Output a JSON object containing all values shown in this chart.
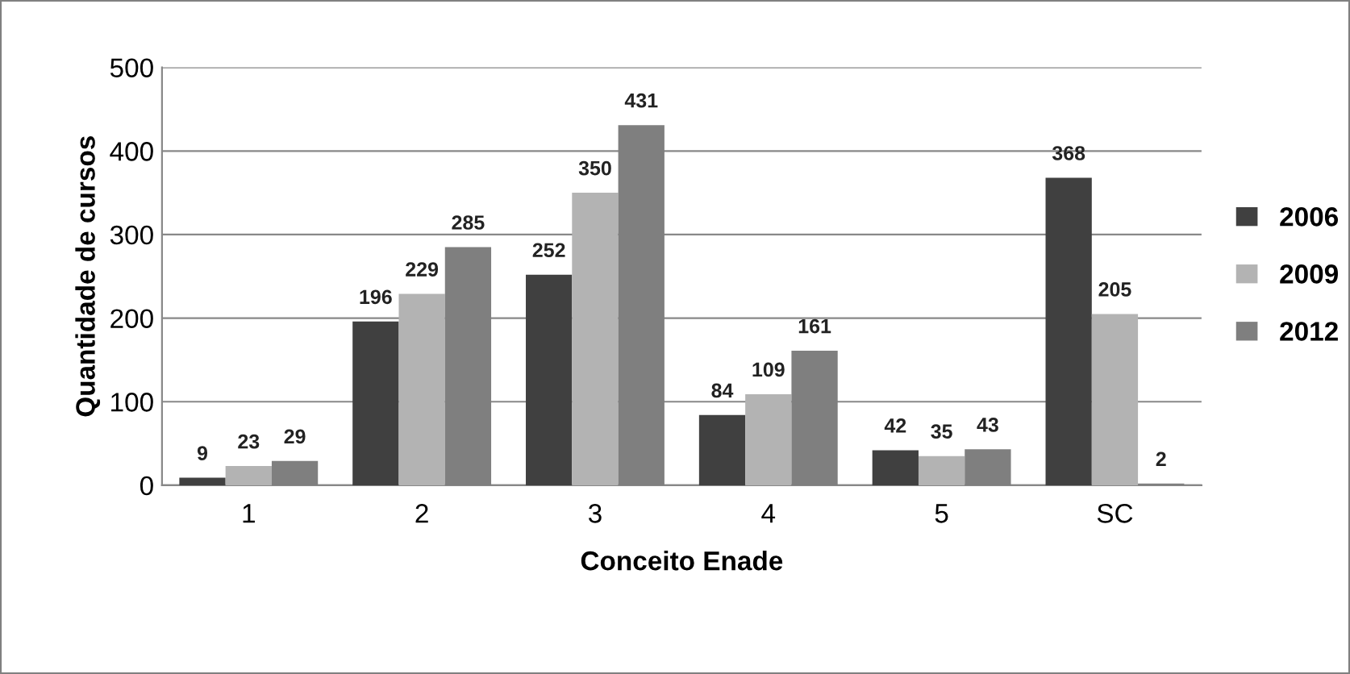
{
  "chart_data": {
    "type": "bar",
    "xlabel": "Conceito Enade",
    "ylabel": "Quantidade de cursos",
    "categories": [
      "1",
      "2",
      "3",
      "4",
      "5",
      "SC"
    ],
    "series": [
      {
        "name": "2006",
        "color": "#404040",
        "values": [
          9,
          196,
          252,
          84,
          42,
          368
        ]
      },
      {
        "name": "2009",
        "color": "#b3b3b3",
        "values": [
          23,
          229,
          350,
          109,
          35,
          205
        ]
      },
      {
        "name": "2012",
        "color": "#7f7f7f",
        "values": [
          29,
          285,
          431,
          161,
          43,
          2
        ]
      }
    ],
    "ylim": [
      0,
      500
    ],
    "yticks": [
      0,
      100,
      200,
      300,
      400,
      500
    ],
    "grid": "y",
    "legend": "right",
    "data_labels": true
  }
}
